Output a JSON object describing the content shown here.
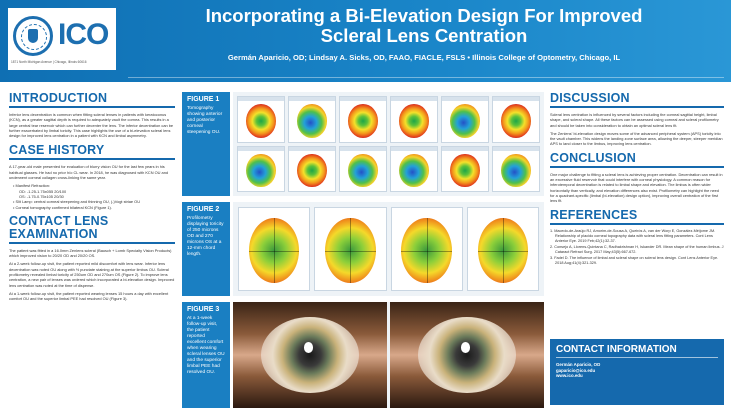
{
  "header": {
    "logo_text": "ICO",
    "logo_subtitle": "1871 North Michigan Avenue | Chicago, Illinois 60616",
    "title_line1": "Incorporating a Bi-Elevation Design For Improved",
    "title_line2": "Scleral Lens Centration",
    "authors": "Germán Aparicio, OD; Lindsay A. Sicks, OD, FAAO, FIACLE, FSLS  •  Illinois College of Optometry, Chicago, IL"
  },
  "introduction": {
    "heading": "INTRODUCTION",
    "text": "Inferior lens decentration is common when fitting scleral lenses in patients with keratoconus (KCN), as a greater sagittal depth is required to adequately vault the cornea. This results in a large central tear reservoir which can further decenter the lens. The inferior decentration can be further exacerbated by limbal toricity. This case highlights the use of a bi-elevation scleral lens design for improved lens centration in a patient with KCN and limbal asymmetry."
  },
  "case_history": {
    "heading": "CASE HISTORY",
    "text": "A 17-year-old male presented for evaluation of blurry vision OU for the last few years in his habitual glasses. He had no prior h/o CL wear. In 2018, he was diagnosed with KCN OU and underwent corneal collagen cross-linking the same year.",
    "items": [
      "Manifest Refraction:",
      "Slit Lamp: central corneal steepening and thinning OU, (-)Vogt striae OU",
      "Corneal tomography confirmed bilateral KCN (Figure 1)."
    ],
    "refraction": [
      "OD: -1.25-1.75x055 20/100",
      "OS: -1.75-0.75x105 20/30"
    ]
  },
  "contact_lens_exam": {
    "heading_line1": "CONTACT LENS",
    "heading_line2": "EXAMINATION",
    "paragraphs": [
      "The patient was fitted in a 16.0mm Zenlens scleral (Bausch + Lomb Specialty Vision Products) which improved vision to 20/20 OD and 20/20 OS.",
      "At a 2-week follow-up visit, the patient reported mild discomfort with lens wear. Inferior lens decentration was noted OU along with ½ punctate staining at the superior limbus OU. Scleral profilometry revealed limbal toricity of 250um OD and 270um OS (Figure 2). To improve lens centration, a new pair of lenses was ordered which incorporated a bi-elevation design. Improved lens centration was noted at the time of dispense.",
      "At a 1-week follow-up visit, the patient reported wearing lenses 15 hours a day with excellent comfort OU and the superior limbal PEE had resolved OU (Figure 3)."
    ]
  },
  "figures": [
    {
      "label": "FIGURE 1",
      "caption": "Tomography showing anterior and posterior corneal steepening OU."
    },
    {
      "label": "FIGURE 2",
      "caption": "Profilometry displaying toricity of 250 microns OD and 270 microns OS at a 12-mm chord length."
    },
    {
      "label": "FIGURE 3",
      "caption": "At a 1-week follow-up visit, the patient reported excellent comfort when wearing scleral lenses OU and the superior limbal PEE had resolved OU."
    }
  ],
  "discussion": {
    "heading": "DISCUSSION",
    "paragraphs": [
      "Scleral lens centration is influenced by several factors including the corneal sagittal height, limbal shape, and scleral shape. All these factors can be assessed using corneal and scleral profilometry and should be taken into consideration to obtain an optimal scleral lens fit.",
      "The Zenlens' bi-elevation design moves some of the advanced peripheral system (APS) toricity into the vault chamber. This widens the landing zone surface area, allowing the deeper, steeper meridian APS to land closer to the limbus, improving lens centration."
    ]
  },
  "conclusion": {
    "heading": "CONCLUSION",
    "text": "One major challenge to fitting a scleral lens is achieving proper centration. Decentration can result in an excessive fluid reservoir that could interfere with corneal physiology. A common reason for inferotemporal decentration is related to limbal shape and elevation. The limbus is often wider horizontally than vertically, and elevation differences also exist. Profilometry can highlight the need for a quadrant-specific (limbal (bi-elevation) design option), improving overall centration of the first lens fit."
  },
  "references": {
    "heading": "REFERENCES",
    "items": [
      "1. Macedo-de-Araújo RJ, Amorim-de-Sousa A, Queirós A, van der Worp E, González-Méijome JM. Relationship of placido corneal topography data with scleral lens fitting parameters. Cont Lens Anterior Eye. 2019 Feb;42(1):32-37.",
      "2. Consejo A, Llorens-Quintana C, Radhakrishnan H, Iskander DR. Mean shape of the human limbus. J Cataract Refract Surg. 2017 May;43(5):667-672.",
      "3. Fadel D. The influence of limbal and scleral shape on scleral lens design. Cont Lens Anterior Eye. 2018 Aug;41(4):321-329."
    ]
  },
  "contact": {
    "heading": "CONTACT INFORMATION",
    "name": "Germán Aparicio, OD",
    "email": "gaparicio@ico.edu",
    "web": "www.ico.edu"
  }
}
